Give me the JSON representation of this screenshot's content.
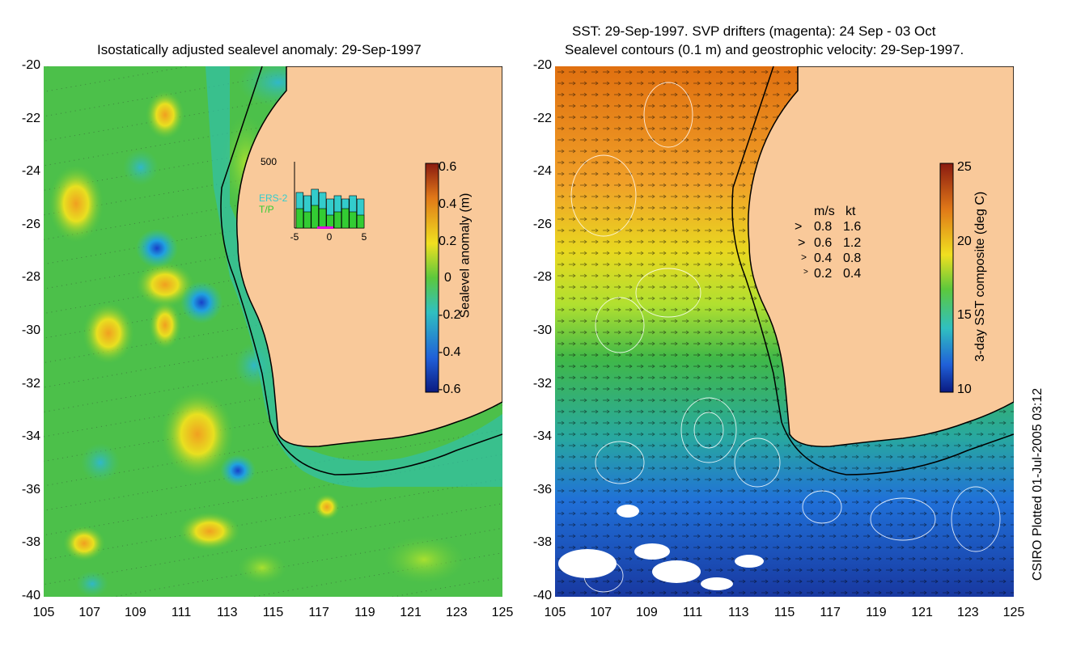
{
  "left_panel": {
    "title": "Isostatically adjusted sealevel anomaly: 29-Sep-1997",
    "colorbar": {
      "label": "Sealevel anomaly (m)",
      "ticks": [
        "0.6",
        "0.4",
        "0.2",
        "0",
        "-0.2",
        "-0.4",
        "-0.6"
      ]
    },
    "inset": {
      "ymax_label": "500",
      "legend": [
        {
          "label": "ERS-2",
          "color": "#33cccc"
        },
        {
          "label": "T/P",
          "color": "#33cc33"
        }
      ],
      "x_ticks": [
        "-5",
        "0",
        "5"
      ],
      "bars": [
        0.55,
        0.5,
        0.6,
        0.55,
        0.45,
        0.5,
        0.45,
        0.5,
        0.45
      ],
      "bars_tp": [
        0.3,
        0.25,
        0.35,
        0.3,
        0.2,
        0.25,
        0.3,
        0.25,
        0.2
      ]
    }
  },
  "right_panel": {
    "title_line1": "SST: 29-Sep-1997. SVP drifters (magenta): 24 Sep - 03 Oct",
    "title_line2": "Sealevel contours (0.1 m) and geostrophic velocity: 29-Sep-1997.",
    "colorbar": {
      "label": "3-day SST composite (deg C)",
      "ticks": [
        "25",
        "20",
        "15",
        "10"
      ]
    },
    "speed_legend": {
      "header": [
        "m/s",
        "kt"
      ],
      "rows": [
        [
          "0.8",
          "1.6"
        ],
        [
          "0.6",
          "1.2"
        ],
        [
          "0.4",
          "0.8"
        ],
        [
          "0.2",
          "0.4"
        ]
      ]
    }
  },
  "axes": {
    "lat_ticks": [
      "-20",
      "-22",
      "-24",
      "-26",
      "-28",
      "-30",
      "-32",
      "-34",
      "-36",
      "-38",
      "-40"
    ],
    "lon_ticks": [
      "105",
      "107",
      "109",
      "111",
      "113",
      "115",
      "117",
      "119",
      "121",
      "123",
      "125"
    ]
  },
  "footer": {
    "credit": "CSIRO Plotted 01-Jul-2005 03:12"
  },
  "colors": {
    "land": "#f9c99a",
    "coast": "#000000"
  }
}
